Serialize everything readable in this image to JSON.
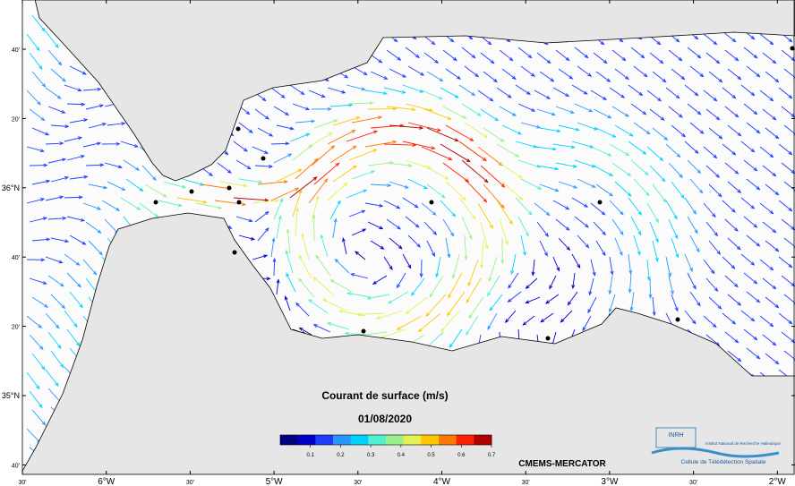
{
  "map": {
    "title": "Courant de surface (m/s)",
    "date": "01/08/2020",
    "source": "CMEMS-MERCATOR",
    "colorbar": {
      "range": [
        0,
        0.7
      ],
      "ticks": [
        0.1,
        0.2,
        0.3,
        0.4,
        0.5,
        0.6,
        0.7
      ],
      "colors": [
        "#000080",
        "#0000cd",
        "#1e3cff",
        "#2896ff",
        "#00d2ff",
        "#50f0d0",
        "#9cf08c",
        "#e6f050",
        "#ffc800",
        "#ff7800",
        "#ff2000",
        "#b00000"
      ]
    },
    "x_labels": [
      "30'",
      "6°W",
      "30'",
      "5°W",
      "30'",
      "4°W",
      "30'",
      "3°W",
      "30'",
      "2°W"
    ],
    "y_labels": [
      "40'",
      "20'",
      "36°N",
      "40'",
      "20'",
      "35°N",
      "40'"
    ],
    "logo": {
      "acronym": "INRH",
      "institute": "Institut National de Recherche Halieutique",
      "unit": "Cellule de Télédétection Spatiale"
    }
  }
}
